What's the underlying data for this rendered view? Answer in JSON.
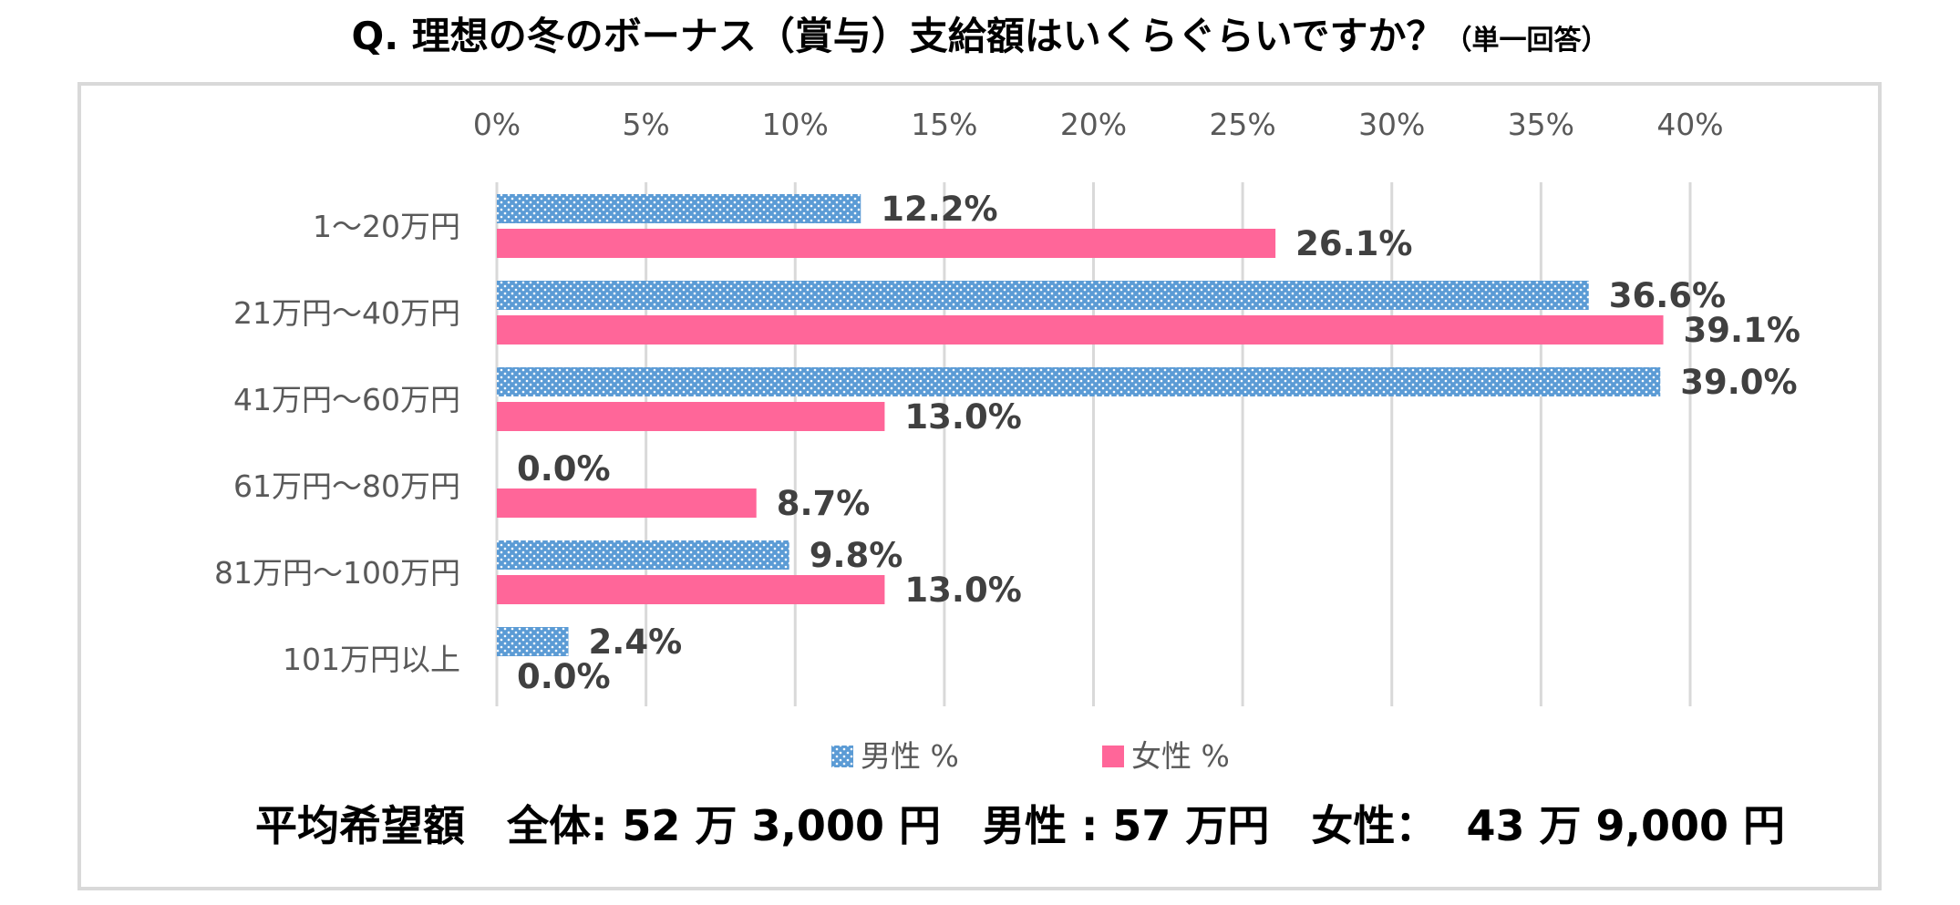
{
  "title": "Q. 理想の冬のボーナス（賞与）支給額はいくらぐらいですか？",
  "title_note": "（単一回答）",
  "footer": "平均希望額　全体: 52 万 3,000 円　男性 : 57 万円　女性：  43 万 9,000 円",
  "chart_data": {
    "type": "bar",
    "orientation": "horizontal",
    "categories": [
      "1～20万円",
      "21万円～40万円",
      "41万円～60万円",
      "61万円～80万円",
      "81万円～100万円",
      "101万円以上"
    ],
    "series": [
      {
        "name": "男性 %",
        "values": [
          12.2,
          36.6,
          39.0,
          0.0,
          9.8,
          2.4
        ],
        "labels": [
          "12.2%",
          "36.6%",
          "39.0%",
          "0.0%",
          "9.8%",
          "2.4%"
        ],
        "color": "#5b9bd5",
        "pattern": "dotted"
      },
      {
        "name": "女性 %",
        "values": [
          26.1,
          39.1,
          13.0,
          8.7,
          13.0,
          0.0
        ],
        "labels": [
          "26.1%",
          "39.1%",
          "13.0%",
          "8.7%",
          "13.0%",
          "0.0%"
        ],
        "color": "#ff6699",
        "pattern": "solid"
      }
    ],
    "xaxis_ticks": [
      "0%",
      "5%",
      "10%",
      "15%",
      "20%",
      "25%",
      "30%",
      "35%",
      "40%"
    ],
    "xlim": [
      0,
      40
    ],
    "grid": true,
    "legend_position": "bottom"
  }
}
